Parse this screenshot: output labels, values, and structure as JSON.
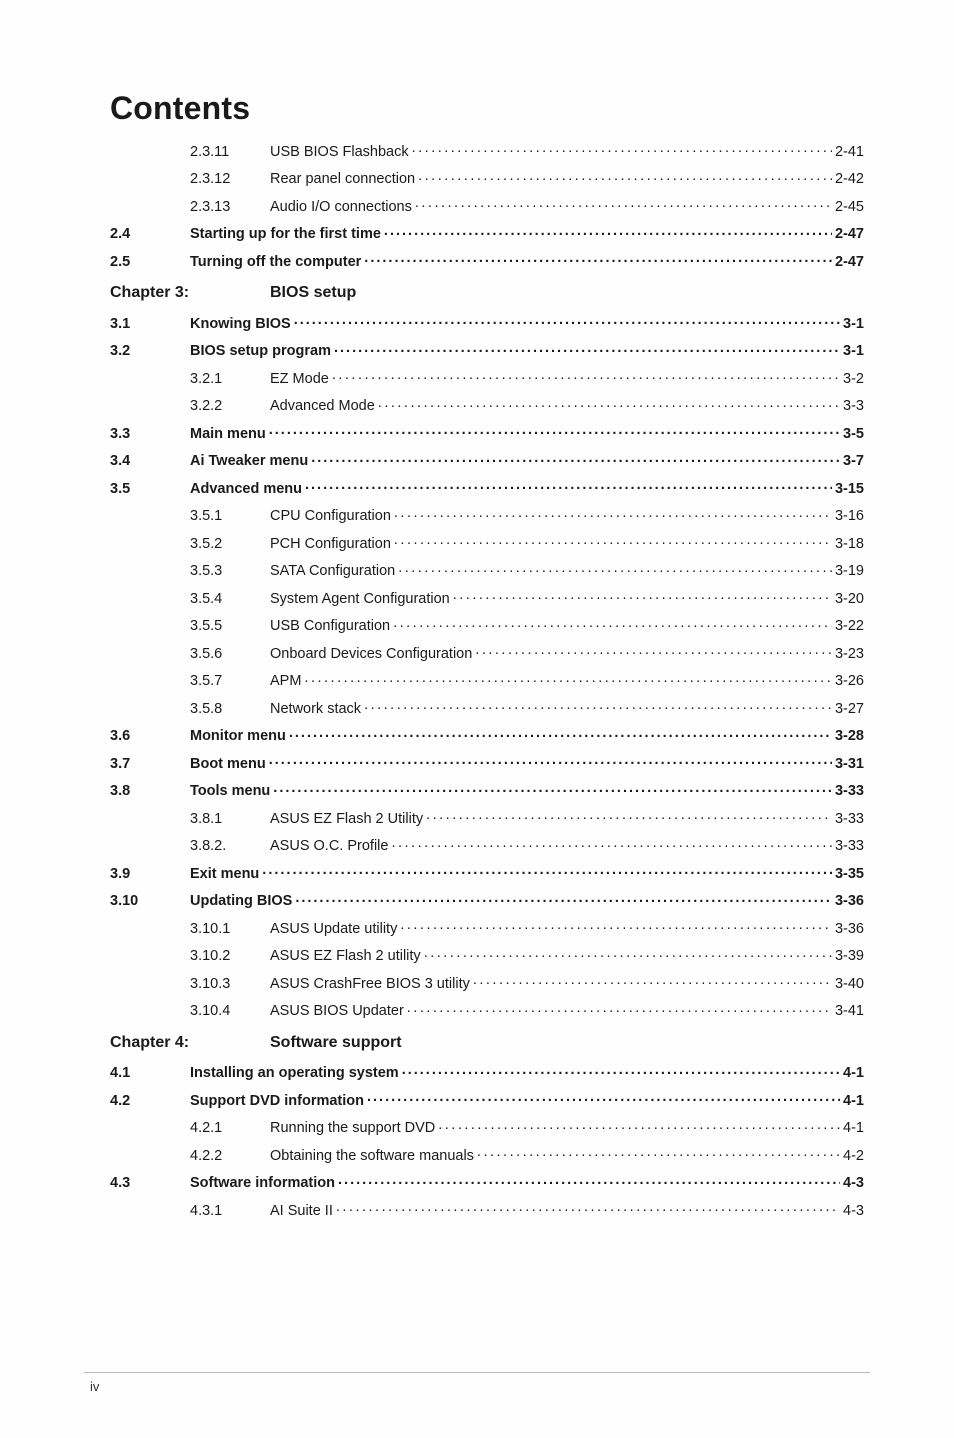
{
  "text_color": "#1a1a1a",
  "page_bg": "#fefefe",
  "outer_bg": "#878787",
  "title": "Contents",
  "footer_page": "iv",
  "entries": [
    {
      "type": "row",
      "num": "",
      "numBold": false,
      "sub": "2.3.11",
      "label": "USB BIOS Flashback",
      "labelBold": false,
      "page": "2-41",
      "pageBold": false,
      "subPresent": true,
      "hasSpacer": true
    },
    {
      "type": "row",
      "num": "",
      "numBold": false,
      "sub": "2.3.12",
      "label": "Rear panel connection",
      "labelBold": false,
      "page": "2-42",
      "pageBold": false,
      "subPresent": true,
      "hasSpacer": true
    },
    {
      "type": "row",
      "num": "",
      "numBold": false,
      "sub": "2.3.13",
      "label": "Audio I/O connections",
      "labelBold": false,
      "page": "2-45",
      "pageBold": false,
      "subPresent": true,
      "hasSpacer": true
    },
    {
      "type": "row",
      "num": "2.4",
      "numBold": true,
      "sub": "",
      "label": "Starting up for the first time",
      "labelBold": true,
      "page": "2-47",
      "pageBold": true,
      "subPresent": false,
      "hasSpacer": false
    },
    {
      "type": "row",
      "num": "2.5",
      "numBold": true,
      "sub": "",
      "label": "Turning off the computer",
      "labelBold": true,
      "page": "2-47",
      "pageBold": true,
      "subPresent": false,
      "hasSpacer": false
    },
    {
      "type": "chapter",
      "num": "Chapter 3:",
      "label": "BIOS setup"
    },
    {
      "type": "row",
      "num": "3.1",
      "numBold": true,
      "sub": "",
      "label": "Knowing BIOS",
      "labelBold": true,
      "page": "3-1",
      "pageBold": true,
      "subPresent": false,
      "hasSpacer": false
    },
    {
      "type": "row",
      "num": "3.2",
      "numBold": true,
      "sub": "",
      "label": "BIOS setup program",
      "labelBold": true,
      "page": "3-1",
      "pageBold": true,
      "subPresent": false,
      "hasSpacer": false
    },
    {
      "type": "row",
      "num": "",
      "numBold": false,
      "sub": "3.2.1",
      "label": "EZ Mode",
      "labelBold": false,
      "page": "3-2",
      "pageBold": false,
      "subPresent": true,
      "hasSpacer": true
    },
    {
      "type": "row",
      "num": "",
      "numBold": false,
      "sub": "3.2.2",
      "label": "Advanced Mode",
      "labelBold": false,
      "page": "3-3",
      "pageBold": false,
      "subPresent": true,
      "hasSpacer": true
    },
    {
      "type": "row",
      "num": "3.3",
      "numBold": true,
      "sub": "",
      "label": "Main menu",
      "labelBold": true,
      "page": "3-5",
      "pageBold": true,
      "subPresent": false,
      "hasSpacer": false
    },
    {
      "type": "row",
      "num": "3.4",
      "numBold": true,
      "sub": "",
      "label": "Ai Tweaker menu",
      "labelBold": true,
      "page": "3-7",
      "pageBold": true,
      "subPresent": false,
      "hasSpacer": false
    },
    {
      "type": "row",
      "num": "3.5",
      "numBold": true,
      "sub": "",
      "label": "Advanced menu",
      "labelBold": true,
      "page": "3-15",
      "pageBold": true,
      "subPresent": false,
      "hasSpacer": false
    },
    {
      "type": "row",
      "num": "",
      "numBold": false,
      "sub": "3.5.1",
      "label": "CPU Configuration",
      "labelBold": false,
      "page": "3-16",
      "pageBold": false,
      "subPresent": true,
      "hasSpacer": true
    },
    {
      "type": "row",
      "num": "",
      "numBold": false,
      "sub": "3.5.2",
      "label": "PCH Configuration",
      "labelBold": false,
      "page": "3-18",
      "pageBold": false,
      "subPresent": true,
      "hasSpacer": true
    },
    {
      "type": "row",
      "num": "",
      "numBold": false,
      "sub": "3.5.3",
      "label": "SATA Configuration",
      "labelBold": false,
      "page": "3-19",
      "pageBold": false,
      "subPresent": true,
      "hasSpacer": true
    },
    {
      "type": "row",
      "num": "",
      "numBold": false,
      "sub": "3.5.4",
      "label": "System Agent Configuration",
      "labelBold": false,
      "page": "3-20",
      "pageBold": false,
      "subPresent": true,
      "hasSpacer": true
    },
    {
      "type": "row",
      "num": "",
      "numBold": false,
      "sub": "3.5.5",
      "label": "USB Configuration",
      "labelBold": false,
      "page": "3-22",
      "pageBold": false,
      "subPresent": true,
      "hasSpacer": true
    },
    {
      "type": "row",
      "num": "",
      "numBold": false,
      "sub": "3.5.6",
      "label": "Onboard Devices Configuration",
      "labelBold": false,
      "page": "3-23",
      "pageBold": false,
      "subPresent": true,
      "hasSpacer": true
    },
    {
      "type": "row",
      "num": "",
      "numBold": false,
      "sub": "3.5.7",
      "label": "APM",
      "labelBold": false,
      "page": "3-26",
      "pageBold": false,
      "subPresent": true,
      "hasSpacer": true
    },
    {
      "type": "row",
      "num": "",
      "numBold": false,
      "sub": "3.5.8",
      "label": "Network stack",
      "labelBold": false,
      "page": "3-27",
      "pageBold": false,
      "subPresent": true,
      "hasSpacer": true
    },
    {
      "type": "row",
      "num": "3.6",
      "numBold": true,
      "sub": "",
      "label": "Monitor menu",
      "labelBold": true,
      "page": "3-28",
      "pageBold": true,
      "subPresent": false,
      "hasSpacer": false
    },
    {
      "type": "row",
      "num": "3.7",
      "numBold": true,
      "sub": "",
      "label": "Boot menu",
      "labelBold": true,
      "page": "3-31",
      "pageBold": true,
      "subPresent": false,
      "hasSpacer": false
    },
    {
      "type": "row",
      "num": "3.8",
      "numBold": true,
      "sub": "",
      "label": "Tools menu",
      "labelBold": true,
      "page": "3-33",
      "pageBold": true,
      "subPresent": false,
      "hasSpacer": false
    },
    {
      "type": "row",
      "num": "",
      "numBold": false,
      "sub": "3.8.1",
      "label": "ASUS EZ Flash 2 Utility",
      "labelBold": false,
      "page": "3-33",
      "pageBold": false,
      "subPresent": true,
      "hasSpacer": true
    },
    {
      "type": "row",
      "num": "",
      "numBold": false,
      "sub": "3.8.2.",
      "label": "ASUS O.C. Profile",
      "labelBold": false,
      "page": "3-33",
      "pageBold": false,
      "subPresent": true,
      "hasSpacer": true
    },
    {
      "type": "row",
      "num": "3.9",
      "numBold": true,
      "sub": "",
      "label": "Exit menu",
      "labelBold": true,
      "page": "3-35",
      "pageBold": true,
      "subPresent": false,
      "hasSpacer": false
    },
    {
      "type": "row",
      "num": "3.10",
      "numBold": true,
      "sub": "",
      "label": "Updating BIOS",
      "labelBold": true,
      "page": "3-36",
      "pageBold": true,
      "subPresent": false,
      "hasSpacer": false
    },
    {
      "type": "row",
      "num": "",
      "numBold": false,
      "sub": "3.10.1",
      "label": "ASUS Update utility",
      "labelBold": false,
      "page": "3-36",
      "pageBold": false,
      "subPresent": true,
      "hasSpacer": true
    },
    {
      "type": "row",
      "num": "",
      "numBold": false,
      "sub": "3.10.2",
      "label": "ASUS EZ Flash 2 utility",
      "labelBold": false,
      "page": "3-39",
      "pageBold": false,
      "subPresent": true,
      "hasSpacer": true
    },
    {
      "type": "row",
      "num": "",
      "numBold": false,
      "sub": "3.10.3",
      "label": "ASUS CrashFree BIOS 3 utility",
      "labelBold": false,
      "page": "3-40",
      "pageBold": false,
      "subPresent": true,
      "hasSpacer": true
    },
    {
      "type": "row",
      "num": "",
      "numBold": false,
      "sub": "3.10.4",
      "label": "ASUS BIOS Updater",
      "labelBold": false,
      "page": "3-41",
      "pageBold": false,
      "subPresent": true,
      "hasSpacer": true
    },
    {
      "type": "chapter",
      "num": "Chapter 4:",
      "label": "Software support"
    },
    {
      "type": "row",
      "num": "4.1",
      "numBold": true,
      "sub": "",
      "label": "Installing an operating system",
      "labelBold": true,
      "page": "4-1",
      "pageBold": true,
      "subPresent": false,
      "hasSpacer": false
    },
    {
      "type": "row",
      "num": "4.2",
      "numBold": true,
      "sub": "",
      "label": "Support DVD information",
      "labelBold": true,
      "page": "4-1",
      "pageBold": true,
      "subPresent": false,
      "hasSpacer": false
    },
    {
      "type": "row",
      "num": "",
      "numBold": false,
      "sub": "4.2.1",
      "label": "Running the support DVD",
      "labelBold": false,
      "page": "4-1",
      "pageBold": false,
      "subPresent": true,
      "hasSpacer": true
    },
    {
      "type": "row",
      "num": "",
      "numBold": false,
      "sub": "4.2.2",
      "label": "Obtaining the software manuals",
      "labelBold": false,
      "page": "4-2",
      "pageBold": false,
      "subPresent": true,
      "hasSpacer": true
    },
    {
      "type": "row",
      "num": "4.3",
      "numBold": true,
      "sub": "",
      "label": "Software information",
      "labelBold": true,
      "page": "4-3",
      "pageBold": true,
      "subPresent": false,
      "hasSpacer": false
    },
    {
      "type": "row",
      "num": "",
      "numBold": false,
      "sub": "4.3.1",
      "label": "AI Suite II",
      "labelBold": false,
      "page": "4-3",
      "pageBold": false,
      "subPresent": true,
      "hasSpacer": true
    }
  ]
}
